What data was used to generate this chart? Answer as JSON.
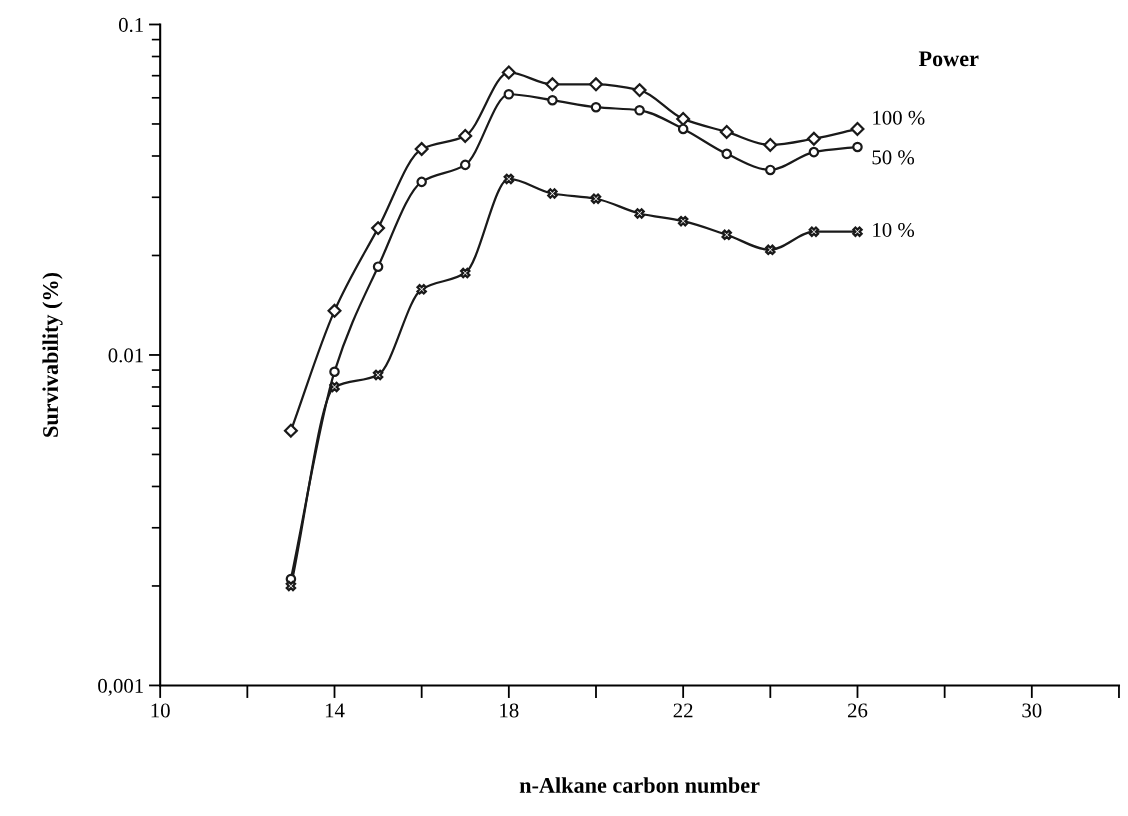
{
  "chart_data": {
    "type": "line",
    "xlabel": "n-Alkane carbon number",
    "ylabel": "Survivability (%)",
    "legend_title": "Power",
    "x": [
      13,
      14,
      15,
      16,
      17,
      18,
      19,
      20,
      21,
      22,
      23,
      24,
      25,
      26
    ],
    "series": [
      {
        "name": "100 %",
        "color": "#1a1a1a",
        "marker": "diamond",
        "values": [
          0.0059,
          0.0136,
          0.0242,
          0.042,
          0.046,
          0.0716,
          0.0659,
          0.0659,
          0.0633,
          0.0518,
          0.0473,
          0.0432,
          0.0451,
          0.0483
        ]
      },
      {
        "name": "50 %",
        "color": "#1a1a1a",
        "marker": "circle",
        "values": [
          0.0021,
          0.0089,
          0.0185,
          0.0334,
          0.0376,
          0.0615,
          0.059,
          0.0562,
          0.055,
          0.0483,
          0.0406,
          0.0363,
          0.0411,
          0.0426
        ]
      },
      {
        "name": "10 %",
        "color": "#1a1a1a",
        "marker": "cross",
        "values": [
          0.002,
          0.008,
          0.0087,
          0.0158,
          0.0177,
          0.0341,
          0.0308,
          0.0297,
          0.0268,
          0.0254,
          0.0231,
          0.0208,
          0.0236,
          0.0236
        ]
      }
    ],
    "log": "y",
    "xlim": [
      10,
      32
    ],
    "ylim": [
      0.001,
      0.1
    ],
    "xticks": [
      10,
      {
        "value": 12,
        "label": null
      },
      14,
      {
        "value": 16,
        "label": null
      },
      18,
      {
        "value": 20,
        "label": null
      },
      22,
      {
        "value": 24,
        "label": null
      },
      26,
      {
        "value": 28,
        "label": null
      },
      30,
      {
        "value": 32,
        "label": null
      }
    ],
    "yticks": [
      {
        "value": 0.001,
        "label": "0,001"
      },
      0.01,
      0.1
    ],
    "grid": false,
    "line_style": "solid"
  }
}
